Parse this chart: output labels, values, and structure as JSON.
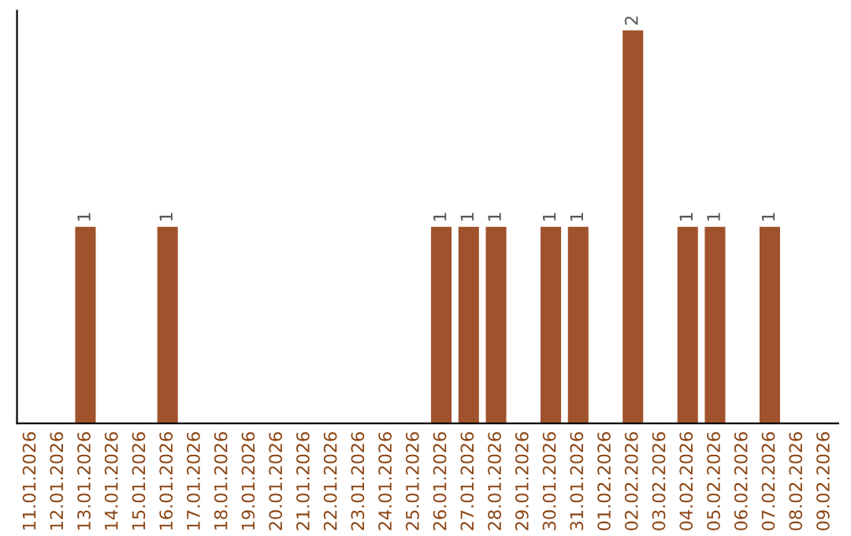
{
  "chart_data": {
    "type": "bar",
    "categories": [
      "11.01.2026",
      "12.01.2026",
      "13.01.2026",
      "14.01.2026",
      "15.01.2026",
      "16.01.2026",
      "17.01.2026",
      "18.01.2026",
      "19.01.2026",
      "20.01.2026",
      "21.01.2026",
      "22.01.2026",
      "23.01.2026",
      "24.01.2026",
      "25.01.2026",
      "26.01.2026",
      "27.01.2026",
      "28.01.2026",
      "29.01.2026",
      "30.01.2026",
      "31.01.2026",
      "01.02.2026",
      "02.02.2026",
      "03.02.2026",
      "04.02.2026",
      "05.02.2026",
      "06.02.2026",
      "07.02.2026",
      "08.02.2026",
      "09.02.2026"
    ],
    "values": [
      0,
      0,
      1,
      0,
      0,
      1,
      0,
      0,
      0,
      0,
      0,
      0,
      0,
      0,
      0,
      1,
      1,
      1,
      0,
      1,
      1,
      0,
      2,
      0,
      1,
      1,
      0,
      1,
      0,
      0
    ],
    "value_labels": [
      null,
      null,
      "1",
      null,
      null,
      "1",
      null,
      null,
      null,
      null,
      null,
      null,
      null,
      null,
      null,
      "1",
      "1",
      "1",
      null,
      "1",
      "1",
      null,
      "2",
      null,
      "1",
      "1",
      null,
      "1",
      null,
      null
    ],
    "color": "#a0522d",
    "tick_labels": "x",
    "grid": false
  }
}
